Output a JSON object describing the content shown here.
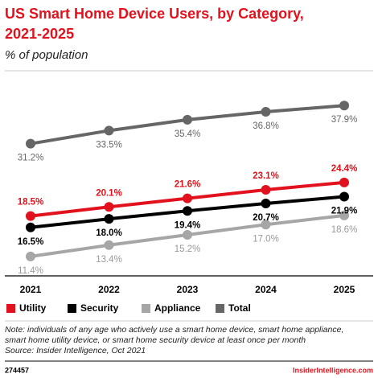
{
  "chart_data": {
    "type": "line",
    "title": [
      "US Smart Home Device Users, by Category,",
      "2021-2025"
    ],
    "subtitle": "% of population",
    "categories": [
      "2021",
      "2022",
      "2023",
      "2024",
      "2025"
    ],
    "series": [
      {
        "name": "Utility",
        "color": "#e1121d",
        "values": [
          18.5,
          20.1,
          21.6,
          23.1,
          24.4
        ],
        "value_labels": [
          "18.5%",
          "20.1%",
          "21.6%",
          "23.1%",
          "24.4%"
        ]
      },
      {
        "name": "Security",
        "color": "#000000",
        "values": [
          16.5,
          18.0,
          19.4,
          20.7,
          21.9
        ],
        "value_labels": [
          "16.5%",
          "18.0%",
          "19.4%",
          "20.7%",
          "21.9%"
        ]
      },
      {
        "name": "Appliance",
        "color": "#a6a6a6",
        "values": [
          11.4,
          13.4,
          15.2,
          17.0,
          18.6
        ],
        "value_labels": [
          "11.4%",
          "13.4%",
          "15.2%",
          "17.0%",
          "18.6%"
        ]
      },
      {
        "name": "Total",
        "color": "#666666",
        "values": [
          31.2,
          33.5,
          35.4,
          36.8,
          37.9
        ],
        "value_labels": [
          "31.2%",
          "33.5%",
          "35.4%",
          "36.8%",
          "37.9%"
        ]
      }
    ],
    "ylim": [
      8,
      44
    ],
    "note": [
      "Note: individuals of any age who actively use a smart home device, smart home appliance,",
      "smart home utility device, or smart home security device at least once per month",
      "Source: Insider Intelligence, Oct 2021"
    ],
    "chart_id": "274457",
    "site": "InsiderIntelligence.com"
  }
}
